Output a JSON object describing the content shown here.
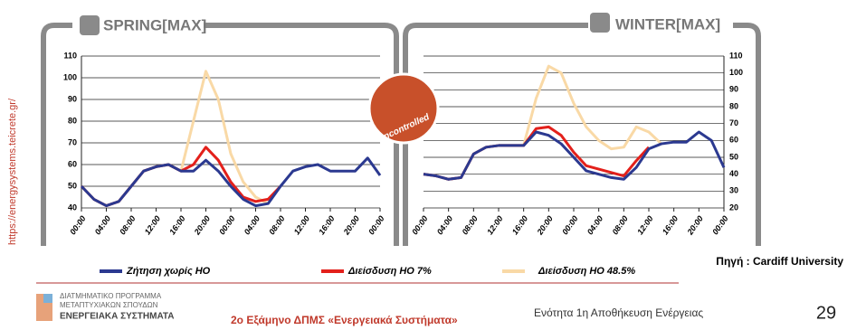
{
  "side_url": "https://energysystems.teicrete.gr/",
  "badge": "Uncontrolled",
  "source": "Πηγή : Cardiff University",
  "footer": {
    "program": [
      "ΔΙΑΤΜΗΜΑΤΙΚΟ ΠΡΟΓΡΑΜΜΑ",
      "ΜΕΤΑΠΤΥΧΙΑΚΩΝ ΣΠΟΥΔΩΝ",
      "ΕΝΕΡΓΕΙΑΚΑ ΣΥΣΤΗΜΑΤΑ"
    ],
    "semester": "2ο Εξάμηνο ΔΠΜΣ «Ενεργειακά Συστήματα»",
    "unit": "Ενότητα 1η Αποθήκευση Ενέργειας",
    "page": "29"
  },
  "chart_data": [
    {
      "type": "line",
      "title": "SPRING[MAX]",
      "yaxis_side": "left",
      "x": [
        0,
        2,
        4,
        6,
        8,
        10,
        12,
        14,
        16,
        18,
        20,
        22,
        24,
        26,
        28,
        30,
        32,
        34,
        36,
        38,
        40,
        42,
        44,
        46,
        48
      ],
      "xlim": [
        0,
        48
      ],
      "xticks": [
        {
          "value": 0,
          "label": "00:00"
        },
        {
          "value": 4,
          "label": "04:00"
        },
        {
          "value": 8,
          "label": "08:00"
        },
        {
          "value": 12,
          "label": "12:00"
        },
        {
          "value": 16,
          "label": "16:00"
        },
        {
          "value": 20,
          "label": "20:00"
        },
        {
          "value": 24,
          "label": "00:00"
        },
        {
          "value": 28,
          "label": "04:00"
        },
        {
          "value": 32,
          "label": "08:00"
        },
        {
          "value": 36,
          "label": "12:00"
        },
        {
          "value": 40,
          "label": "16:00"
        },
        {
          "value": 44,
          "label": "20:00"
        },
        {
          "value": 48,
          "label": "00:00"
        }
      ],
      "ylim": [
        40,
        110
      ],
      "yticks": [
        40,
        50,
        60,
        70,
        80,
        90,
        100,
        110
      ],
      "grid": true,
      "series": [
        {
          "name": "Ζήτηση χωρίς HO",
          "color": "#2b3990",
          "values": [
            50,
            44,
            41,
            43,
            50,
            57,
            59,
            60,
            57,
            57,
            62,
            57,
            50,
            44,
            41,
            42,
            50,
            57,
            59,
            60,
            57,
            57,
            57,
            63,
            55
          ]
        },
        {
          "name": "Διείσδυση HO 7%",
          "color": "#e3201b",
          "values": [
            50,
            44,
            41,
            43,
            50,
            57,
            59,
            60,
            57,
            60,
            68,
            62,
            52,
            45,
            43,
            44,
            50,
            null,
            null,
            null,
            null,
            null,
            null,
            null,
            null
          ]
        },
        {
          "name": "Διείσδυση HO 48.5%",
          "color": "#f9d9a6",
          "values": [
            50,
            44,
            41,
            43,
            50,
            57,
            59,
            60,
            57,
            80,
            103,
            90,
            65,
            52,
            45,
            42,
            null,
            null,
            null,
            null,
            null,
            null,
            null,
            null,
            null
          ]
        }
      ]
    },
    {
      "type": "line",
      "title": "WINTER[MAX]",
      "yaxis_side": "right",
      "x": [
        0,
        2,
        4,
        6,
        8,
        10,
        12,
        14,
        16,
        18,
        20,
        22,
        24,
        26,
        28,
        30,
        32,
        34,
        36,
        38,
        40,
        42,
        44,
        46,
        48
      ],
      "xlim": [
        0,
        48
      ],
      "xticks": [
        {
          "value": 0,
          "label": "00:00"
        },
        {
          "value": 4,
          "label": "04:00"
        },
        {
          "value": 8,
          "label": "08:00"
        },
        {
          "value": 12,
          "label": "12:00"
        },
        {
          "value": 16,
          "label": "16:00"
        },
        {
          "value": 20,
          "label": "20:00"
        },
        {
          "value": 24,
          "label": "00:00"
        },
        {
          "value": 28,
          "label": "04:00"
        },
        {
          "value": 32,
          "label": "08:00"
        },
        {
          "value": 36,
          "label": "12:00"
        },
        {
          "value": 40,
          "label": "16:00"
        },
        {
          "value": 44,
          "label": "20:00"
        },
        {
          "value": 48,
          "label": "00:00"
        }
      ],
      "ylim": [
        20,
        110
      ],
      "yticks": [
        20,
        30,
        40,
        50,
        60,
        70,
        80,
        90,
        100,
        110
      ],
      "grid": true,
      "series": [
        {
          "color": "#2b3990",
          "values": [
            40,
            39,
            37,
            38,
            52,
            56,
            57,
            57,
            57,
            65,
            63,
            58,
            50,
            42,
            40,
            38,
            37,
            44,
            55,
            58,
            59,
            59,
            65,
            60,
            44
          ]
        },
        {
          "color": "#e3201b",
          "values": [
            40,
            39,
            37,
            38,
            52,
            56,
            57,
            57,
            57,
            67,
            68,
            63,
            53,
            45,
            43,
            41,
            39,
            48,
            56,
            null,
            null,
            null,
            null,
            null,
            null
          ]
        },
        {
          "color": "#f9d9a6",
          "values": [
            40,
            39,
            37,
            38,
            52,
            56,
            57,
            57,
            57,
            85,
            104,
            100,
            82,
            68,
            60,
            55,
            56,
            68,
            65,
            58,
            null,
            null,
            null,
            null,
            null
          ]
        }
      ]
    }
  ]
}
